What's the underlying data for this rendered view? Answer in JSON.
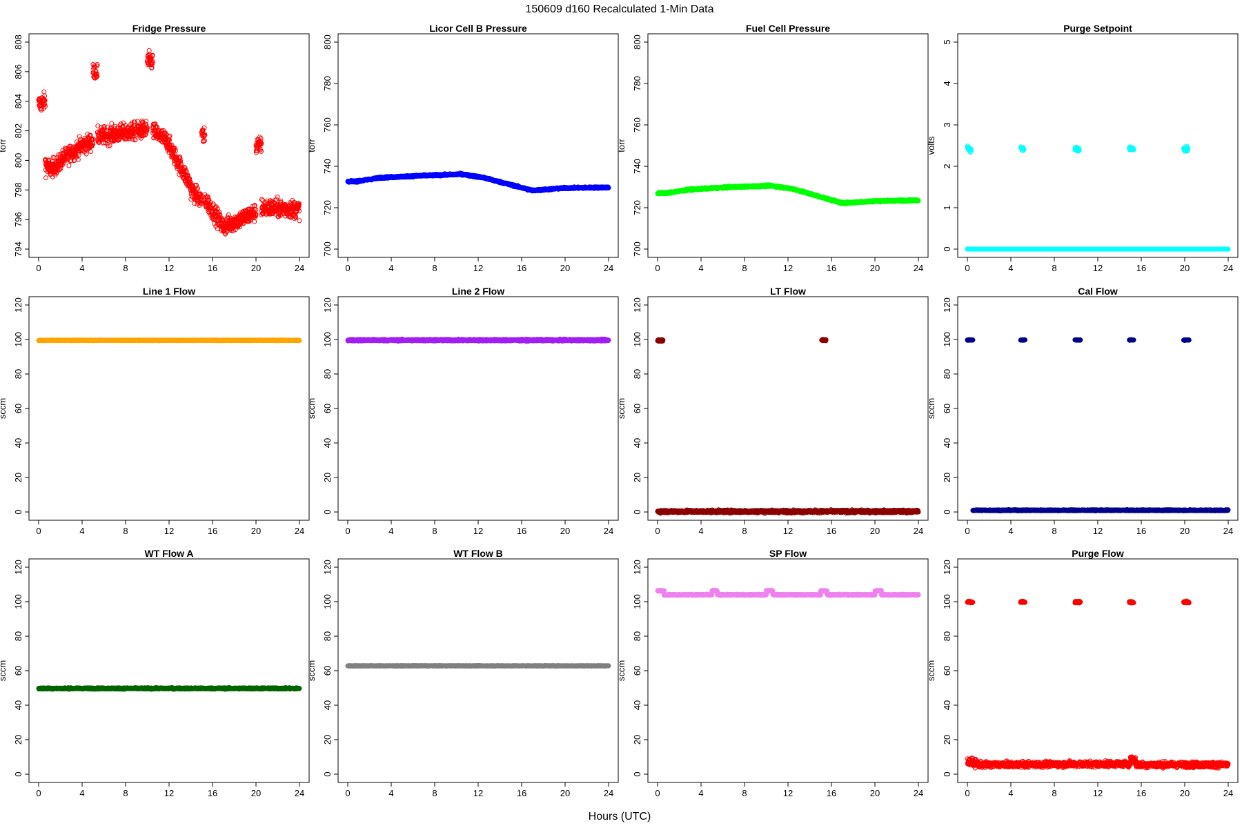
{
  "figure": {
    "title": "150609   d160   Recalculated 1-Min Data",
    "xlabel": "Hours (UTC)"
  },
  "chart_data": [
    {
      "type": "scatter",
      "title": "Fridge Pressure",
      "ylabel": "torr",
      "xlim": [
        0,
        24
      ],
      "ylim": [
        794,
        808
      ],
      "xticks": [
        0,
        4,
        8,
        12,
        16,
        20,
        24
      ],
      "yticks": [
        794,
        796,
        798,
        800,
        802,
        804,
        806,
        808
      ],
      "color": "#ff0000",
      "marker": "open",
      "series": [
        {
          "segments": [
            {
              "x0": 0.0,
              "x1": 0.6,
              "y0": 803.8,
              "y1": 804.0,
              "noise": 0.6
            },
            {
              "x0": 0.6,
              "x1": 1.0,
              "y0": 799.8,
              "y1": 799.4,
              "noise": 0.7
            },
            {
              "x0": 1.0,
              "x1": 2.0,
              "y0": 799.4,
              "y1": 799.8,
              "noise": 0.6
            },
            {
              "x0": 2.0,
              "x1": 4.0,
              "y0": 800.0,
              "y1": 801.0,
              "noise": 0.6
            },
            {
              "x0": 4.0,
              "x1": 5.0,
              "y0": 801.0,
              "y1": 801.3,
              "noise": 0.6
            },
            {
              "x0": 5.0,
              "x1": 5.4,
              "y0": 806.0,
              "y1": 806.0,
              "noise": 0.5
            },
            {
              "x0": 5.4,
              "x1": 10.0,
              "y0": 801.6,
              "y1": 802.1,
              "noise": 0.6
            },
            {
              "x0": 10.0,
              "x1": 10.5,
              "y0": 806.7,
              "y1": 806.7,
              "noise": 0.6
            },
            {
              "x0": 10.5,
              "x1": 12.0,
              "y0": 802.0,
              "y1": 801.2,
              "noise": 0.6
            },
            {
              "x0": 12.0,
              "x1": 14.0,
              "y0": 801.0,
              "y1": 798.3,
              "noise": 0.6
            },
            {
              "x0": 14.0,
              "x1": 15.0,
              "y0": 798.0,
              "y1": 797.3,
              "noise": 0.6
            },
            {
              "x0": 15.0,
              "x1": 15.3,
              "y0": 801.8,
              "y1": 801.5,
              "noise": 0.6
            },
            {
              "x0": 15.3,
              "x1": 17.0,
              "y0": 797.4,
              "y1": 795.5,
              "noise": 0.6
            },
            {
              "x0": 17.0,
              "x1": 20.0,
              "y0": 795.5,
              "y1": 796.5,
              "noise": 0.6
            },
            {
              "x0": 20.0,
              "x1": 20.5,
              "y0": 801.0,
              "y1": 801.0,
              "noise": 0.6
            },
            {
              "x0": 20.5,
              "x1": 24.0,
              "y0": 796.8,
              "y1": 796.7,
              "noise": 0.6
            }
          ]
        }
      ]
    },
    {
      "type": "scatter",
      "title": "Licor Cell B Pressure",
      "ylabel": "torr",
      "xlim": [
        0,
        24
      ],
      "ylim": [
        700,
        800
      ],
      "xticks": [
        0,
        4,
        8,
        12,
        16,
        20,
        24
      ],
      "yticks": [
        700,
        720,
        740,
        760,
        780,
        800
      ],
      "color": "#0000ff",
      "marker": "open",
      "series": [
        {
          "segments": [
            {
              "x0": 0.0,
              "x1": 1.0,
              "y0": 732.5,
              "y1": 732.8,
              "noise": 0.4
            },
            {
              "x0": 1.0,
              "x1": 3.0,
              "y0": 732.8,
              "y1": 734.5,
              "noise": 0.4
            },
            {
              "x0": 3.0,
              "x1": 7.0,
              "y0": 734.5,
              "y1": 735.5,
              "noise": 0.4
            },
            {
              "x0": 7.0,
              "x1": 10.5,
              "y0": 735.5,
              "y1": 736.2,
              "noise": 0.4
            },
            {
              "x0": 10.5,
              "x1": 12.5,
              "y0": 736.2,
              "y1": 734.5,
              "noise": 0.4
            },
            {
              "x0": 12.5,
              "x1": 17.0,
              "y0": 734.5,
              "y1": 728.3,
              "noise": 0.4
            },
            {
              "x0": 17.0,
              "x1": 20.0,
              "y0": 728.3,
              "y1": 729.5,
              "noise": 0.4
            },
            {
              "x0": 20.0,
              "x1": 24.0,
              "y0": 729.5,
              "y1": 729.8,
              "noise": 0.4
            }
          ]
        }
      ]
    },
    {
      "type": "scatter",
      "title": "Fuel Cell Pressure",
      "ylabel": "torr",
      "xlim": [
        0,
        24
      ],
      "ylim": [
        700,
        800
      ],
      "xticks": [
        0,
        4,
        8,
        12,
        16,
        20,
        24
      ],
      "yticks": [
        700,
        720,
        740,
        760,
        780,
        800
      ],
      "color": "#00ff00",
      "marker": "open",
      "series": [
        {
          "segments": [
            {
              "x0": 0.0,
              "x1": 1.0,
              "y0": 727.0,
              "y1": 727.2,
              "noise": 0.4
            },
            {
              "x0": 1.0,
              "x1": 3.0,
              "y0": 727.2,
              "y1": 728.8,
              "noise": 0.4
            },
            {
              "x0": 3.0,
              "x1": 7.0,
              "y0": 728.8,
              "y1": 730.0,
              "noise": 0.4
            },
            {
              "x0": 7.0,
              "x1": 10.5,
              "y0": 730.0,
              "y1": 730.6,
              "noise": 0.4
            },
            {
              "x0": 10.5,
              "x1": 12.5,
              "y0": 730.6,
              "y1": 729.0,
              "noise": 0.4
            },
            {
              "x0": 12.5,
              "x1": 17.0,
              "y0": 729.0,
              "y1": 722.2,
              "noise": 0.4
            },
            {
              "x0": 17.0,
              "x1": 20.0,
              "y0": 722.2,
              "y1": 723.2,
              "noise": 0.4
            },
            {
              "x0": 20.0,
              "x1": 24.0,
              "y0": 723.2,
              "y1": 723.6,
              "noise": 0.4
            }
          ]
        }
      ]
    },
    {
      "type": "scatter",
      "title": "Purge Setpoint",
      "ylabel": "volts",
      "xlim": [
        0,
        24
      ],
      "ylim": [
        0,
        5
      ],
      "xticks": [
        0,
        4,
        8,
        12,
        16,
        20,
        24
      ],
      "yticks": [
        0,
        1,
        2,
        3,
        4,
        5
      ],
      "color": "#00ffff",
      "marker": "open",
      "series": [
        {
          "segments": [
            {
              "x0": 0.0,
              "x1": 24.0,
              "y0": 0.0,
              "y1": 0.0,
              "noise": 0.0
            },
            {
              "x0": 0.0,
              "x1": 0.35,
              "y0": 2.45,
              "y1": 2.38,
              "noise": 0.05
            },
            {
              "x0": 4.9,
              "x1": 5.2,
              "y0": 2.45,
              "y1": 2.4,
              "noise": 0.05
            },
            {
              "x0": 9.9,
              "x1": 10.3,
              "y0": 2.42,
              "y1": 2.4,
              "noise": 0.06
            },
            {
              "x0": 14.9,
              "x1": 15.3,
              "y0": 2.45,
              "y1": 2.4,
              "noise": 0.05
            },
            {
              "x0": 19.9,
              "x1": 20.3,
              "y0": 2.42,
              "y1": 2.4,
              "noise": 0.06
            }
          ]
        }
      ]
    },
    {
      "type": "scatter",
      "title": "Line 1 Flow",
      "ylabel": "sccm",
      "xlim": [
        0,
        24
      ],
      "ylim": [
        0,
        120
      ],
      "xticks": [
        0,
        4,
        8,
        12,
        16,
        20,
        24
      ],
      "yticks": [
        0,
        20,
        40,
        60,
        80,
        100,
        120
      ],
      "color": "#ffa500",
      "marker": "open",
      "series": [
        {
          "segments": [
            {
              "x0": 0.0,
              "x1": 24.0,
              "y0": 99.5,
              "y1": 99.5,
              "noise": 0.2
            }
          ]
        }
      ]
    },
    {
      "type": "scatter",
      "title": "Line 2 Flow",
      "ylabel": "sccm",
      "xlim": [
        0,
        24
      ],
      "ylim": [
        0,
        120
      ],
      "xticks": [
        0,
        4,
        8,
        12,
        16,
        20,
        24
      ],
      "yticks": [
        0,
        20,
        40,
        60,
        80,
        100,
        120
      ],
      "color": "#a020f0",
      "marker": "open",
      "series": [
        {
          "segments": [
            {
              "x0": 0.0,
              "x1": 24.0,
              "y0": 99.6,
              "y1": 99.6,
              "noise": 0.5
            }
          ]
        }
      ]
    },
    {
      "type": "scatter",
      "title": "LT Flow",
      "ylabel": "sccm",
      "xlim": [
        0,
        24
      ],
      "ylim": [
        0,
        120
      ],
      "xticks": [
        0,
        4,
        8,
        12,
        16,
        20,
        24
      ],
      "yticks": [
        0,
        20,
        40,
        60,
        80,
        100,
        120
      ],
      "color": "#8b0000",
      "marker": "open",
      "series": [
        {
          "segments": [
            {
              "x0": 0.0,
              "x1": 24.0,
              "y0": 0.3,
              "y1": 0.3,
              "noise": 0.8
            },
            {
              "x0": 0.0,
              "x1": 0.5,
              "y0": 99.5,
              "y1": 99.5,
              "noise": 0.5
            },
            {
              "x0": 15.1,
              "x1": 15.5,
              "y0": 99.6,
              "y1": 99.6,
              "noise": 0.4
            }
          ]
        }
      ]
    },
    {
      "type": "scatter",
      "title": "Cal Flow",
      "ylabel": "sccm",
      "xlim": [
        0,
        24
      ],
      "ylim": [
        0,
        120
      ],
      "xticks": [
        0,
        4,
        8,
        12,
        16,
        20,
        24
      ],
      "yticks": [
        0,
        20,
        40,
        60,
        80,
        100,
        120
      ],
      "color": "#00008b",
      "marker": "open",
      "series": [
        {
          "segments": [
            {
              "x0": 0.5,
              "x1": 24.0,
              "y0": 1.0,
              "y1": 1.0,
              "noise": 0.3
            },
            {
              "x0": 0.0,
              "x1": 0.5,
              "y0": 99.7,
              "y1": 99.7,
              "noise": 0.2
            },
            {
              "x0": 4.9,
              "x1": 5.3,
              "y0": 99.7,
              "y1": 99.7,
              "noise": 0.2
            },
            {
              "x0": 9.9,
              "x1": 10.4,
              "y0": 99.7,
              "y1": 99.7,
              "noise": 0.2
            },
            {
              "x0": 14.9,
              "x1": 15.3,
              "y0": 99.7,
              "y1": 99.7,
              "noise": 0.2
            },
            {
              "x0": 19.9,
              "x1": 20.4,
              "y0": 99.7,
              "y1": 99.7,
              "noise": 0.2
            }
          ]
        }
      ]
    },
    {
      "type": "scatter",
      "title": "WT Flow A",
      "ylabel": "sccm",
      "xlim": [
        0,
        24
      ],
      "ylim": [
        0,
        120
      ],
      "xticks": [
        0,
        4,
        8,
        12,
        16,
        20,
        24
      ],
      "yticks": [
        0,
        20,
        40,
        60,
        80,
        100,
        120
      ],
      "color": "#006400",
      "marker": "open",
      "series": [
        {
          "segments": [
            {
              "x0": 0.0,
              "x1": 24.0,
              "y0": 49.7,
              "y1": 49.7,
              "noise": 0.4
            }
          ]
        }
      ]
    },
    {
      "type": "scatter",
      "title": "WT Flow B",
      "ylabel": "sccm",
      "xlim": [
        0,
        24
      ],
      "ylim": [
        0,
        120
      ],
      "xticks": [
        0,
        4,
        8,
        12,
        16,
        20,
        24
      ],
      "yticks": [
        0,
        20,
        40,
        60,
        80,
        100,
        120
      ],
      "color": "#808080",
      "marker": "open",
      "series": [
        {
          "segments": [
            {
              "x0": 0.0,
              "x1": 24.0,
              "y0": 62.8,
              "y1": 62.8,
              "noise": 0.15
            }
          ]
        }
      ]
    },
    {
      "type": "scatter",
      "title": "SP Flow",
      "ylabel": "sccm",
      "xlim": [
        0,
        24
      ],
      "ylim": [
        0,
        120
      ],
      "xticks": [
        0,
        4,
        8,
        12,
        16,
        20,
        24
      ],
      "yticks": [
        0,
        20,
        40,
        60,
        80,
        100,
        120
      ],
      "color": "#ee82ee",
      "marker": "open",
      "series": [
        {
          "segments": [
            {
              "x0": 0.0,
              "x1": 0.6,
              "y0": 106.3,
              "y1": 106.3,
              "noise": 0.3
            },
            {
              "x0": 0.6,
              "x1": 5.0,
              "y0": 104.0,
              "y1": 104.0,
              "noise": 0.3
            },
            {
              "x0": 5.0,
              "x1": 5.5,
              "y0": 106.3,
              "y1": 106.3,
              "noise": 0.3
            },
            {
              "x0": 5.5,
              "x1": 10.0,
              "y0": 104.0,
              "y1": 104.0,
              "noise": 0.3
            },
            {
              "x0": 10.0,
              "x1": 10.6,
              "y0": 106.3,
              "y1": 106.3,
              "noise": 0.3
            },
            {
              "x0": 10.6,
              "x1": 15.0,
              "y0": 104.0,
              "y1": 104.0,
              "noise": 0.3
            },
            {
              "x0": 15.0,
              "x1": 15.6,
              "y0": 106.3,
              "y1": 106.3,
              "noise": 0.3
            },
            {
              "x0": 15.6,
              "x1": 20.0,
              "y0": 104.0,
              "y1": 104.0,
              "noise": 0.3
            },
            {
              "x0": 20.0,
              "x1": 20.6,
              "y0": 106.3,
              "y1": 106.3,
              "noise": 0.3
            },
            {
              "x0": 20.6,
              "x1": 24.0,
              "y0": 104.0,
              "y1": 104.0,
              "noise": 0.3
            }
          ]
        }
      ]
    },
    {
      "type": "scatter",
      "title": "Purge Flow",
      "ylabel": "sccm",
      "xlim": [
        0,
        24
      ],
      "ylim": [
        0,
        120
      ],
      "xticks": [
        0,
        4,
        8,
        12,
        16,
        20,
        24
      ],
      "yticks": [
        0,
        20,
        40,
        60,
        80,
        100,
        120
      ],
      "color": "#ff0000",
      "marker": "open",
      "series": [
        {
          "segments": [
            {
              "x0": 0.0,
              "x1": 1.0,
              "y0": 7.5,
              "y1": 6.0,
              "noise": 2.2
            },
            {
              "x0": 1.0,
              "x1": 15.0,
              "y0": 5.5,
              "y1": 6.0,
              "noise": 1.6
            },
            {
              "x0": 15.0,
              "x1": 15.5,
              "y0": 9.0,
              "y1": 8.0,
              "noise": 2.0
            },
            {
              "x0": 15.5,
              "x1": 24.0,
              "y0": 5.5,
              "y1": 5.5,
              "noise": 1.6
            },
            {
              "x0": 0.0,
              "x1": 0.5,
              "y0": 99.7,
              "y1": 99.7,
              "noise": 0.5
            },
            {
              "x0": 4.9,
              "x1": 5.3,
              "y0": 99.8,
              "y1": 99.8,
              "noise": 0.5
            },
            {
              "x0": 9.9,
              "x1": 10.4,
              "y0": 99.7,
              "y1": 99.7,
              "noise": 0.5
            },
            {
              "x0": 14.9,
              "x1": 15.3,
              "y0": 99.8,
              "y1": 99.8,
              "noise": 0.5
            },
            {
              "x0": 19.9,
              "x1": 20.4,
              "y0": 99.7,
              "y1": 99.7,
              "noise": 0.5
            }
          ]
        }
      ]
    }
  ]
}
